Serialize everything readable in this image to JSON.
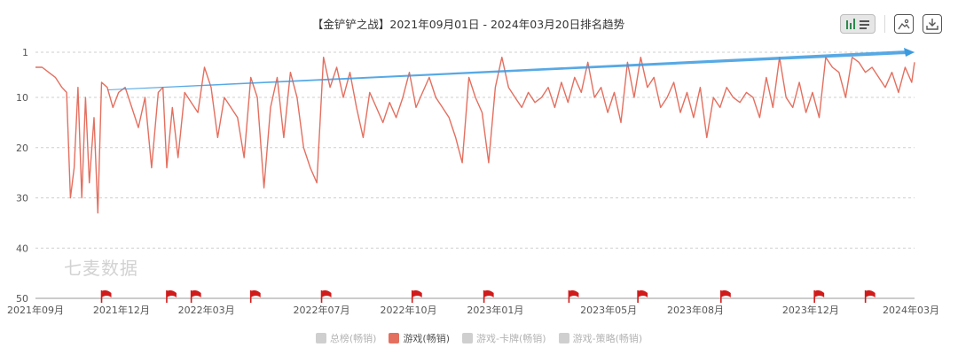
{
  "toolbar": {
    "bar_line_icon": "bar-line-toggle-icon",
    "image_icon": "save-image-icon",
    "download_icon": "download-icon"
  },
  "watermark": "七麦数据",
  "legend": [
    {
      "label": "总榜(畅销)",
      "active": false
    },
    {
      "label": "游戏(畅销)",
      "active": true
    },
    {
      "label": "游戏-卡牌(畅销)",
      "active": false
    },
    {
      "label": "游戏-策略(畅销)",
      "active": false
    }
  ],
  "colors": {
    "series": "#e46f5f",
    "trend": "#3a9ae0",
    "flag": "#d11b1b",
    "grid": "#cfcfcf"
  },
  "chart_data": {
    "type": "line",
    "title": "【金铲铲之战】2021年09月01日 - 2024年03月20日排名趋势",
    "xlabel": "",
    "ylabel": "",
    "y_inverted": true,
    "ylim": [
      1,
      50
    ],
    "y_ticks": [
      "1",
      "10",
      "20",
      "30",
      "40",
      "50"
    ],
    "y_tick_values": [
      1,
      10,
      20,
      30,
      40,
      50
    ],
    "x_range": [
      "2021-09-01",
      "2024-03-20"
    ],
    "x_ticks": [
      "2021年09月",
      "2021年12月",
      "2022年03月",
      "2022年07月",
      "2022年10月",
      "2023年01月",
      "2023年05月",
      "2023年08月",
      "2023年12月",
      "2024年03月"
    ],
    "x_tick_dates": [
      "2021-09-01",
      "2021-12-01",
      "2022-03-01",
      "2022-07-01",
      "2022-10-01",
      "2023-01-01",
      "2023-05-01",
      "2023-08-01",
      "2023-12-01",
      "2024-03-01"
    ],
    "grid": "horizontal-dashed",
    "legend_position": "bottom",
    "series": [
      {
        "name": "游戏(畅销)",
        "points": [
          [
            "2021-09-01",
            4
          ],
          [
            "2021-09-08",
            4
          ],
          [
            "2021-09-15",
            5
          ],
          [
            "2021-09-22",
            6
          ],
          [
            "2021-09-29",
            8
          ],
          [
            "2021-10-04",
            9
          ],
          [
            "2021-10-08",
            30
          ],
          [
            "2021-10-12",
            24
          ],
          [
            "2021-10-16",
            8
          ],
          [
            "2021-10-20",
            30
          ],
          [
            "2021-10-24",
            10
          ],
          [
            "2021-10-28",
            27
          ],
          [
            "2021-11-02",
            14
          ],
          [
            "2021-11-06",
            33
          ],
          [
            "2021-11-10",
            7
          ],
          [
            "2021-11-16",
            8
          ],
          [
            "2021-11-22",
            12
          ],
          [
            "2021-11-28",
            9
          ],
          [
            "2021-12-05",
            8
          ],
          [
            "2021-12-12",
            12
          ],
          [
            "2021-12-19",
            16
          ],
          [
            "2021-12-26",
            10
          ],
          [
            "2022-01-02",
            24
          ],
          [
            "2022-01-09",
            9
          ],
          [
            "2022-01-14",
            8
          ],
          [
            "2022-01-18",
            24
          ],
          [
            "2022-01-24",
            12
          ],
          [
            "2022-01-30",
            22
          ],
          [
            "2022-02-06",
            9
          ],
          [
            "2022-02-13",
            11
          ],
          [
            "2022-02-20",
            13
          ],
          [
            "2022-02-27",
            4
          ],
          [
            "2022-03-06",
            8
          ],
          [
            "2022-03-13",
            18
          ],
          [
            "2022-03-20",
            10
          ],
          [
            "2022-03-27",
            12
          ],
          [
            "2022-04-03",
            14
          ],
          [
            "2022-04-10",
            22
          ],
          [
            "2022-04-17",
            6
          ],
          [
            "2022-04-24",
            10
          ],
          [
            "2022-05-01",
            28
          ],
          [
            "2022-05-08",
            12
          ],
          [
            "2022-05-15",
            6
          ],
          [
            "2022-05-22",
            18
          ],
          [
            "2022-05-29",
            5
          ],
          [
            "2022-06-05",
            10
          ],
          [
            "2022-06-12",
            20
          ],
          [
            "2022-06-19",
            24
          ],
          [
            "2022-06-26",
            27
          ],
          [
            "2022-07-03",
            2
          ],
          [
            "2022-07-10",
            8
          ],
          [
            "2022-07-17",
            4
          ],
          [
            "2022-07-24",
            10
          ],
          [
            "2022-07-31",
            5
          ],
          [
            "2022-08-07",
            12
          ],
          [
            "2022-08-14",
            18
          ],
          [
            "2022-08-21",
            9
          ],
          [
            "2022-08-28",
            12
          ],
          [
            "2022-09-04",
            15
          ],
          [
            "2022-09-11",
            11
          ],
          [
            "2022-09-18",
            14
          ],
          [
            "2022-09-25",
            10
          ],
          [
            "2022-10-02",
            5
          ],
          [
            "2022-10-09",
            12
          ],
          [
            "2022-10-16",
            9
          ],
          [
            "2022-10-23",
            6
          ],
          [
            "2022-10-30",
            10
          ],
          [
            "2022-11-06",
            12
          ],
          [
            "2022-11-13",
            14
          ],
          [
            "2022-11-20",
            18
          ],
          [
            "2022-11-27",
            23
          ],
          [
            "2022-12-04",
            6
          ],
          [
            "2022-12-11",
            10
          ],
          [
            "2022-12-18",
            13
          ],
          [
            "2022-12-25",
            23
          ],
          [
            "2023-01-01",
            8
          ],
          [
            "2023-01-08",
            2
          ],
          [
            "2023-01-15",
            8
          ],
          [
            "2023-01-22",
            10
          ],
          [
            "2023-01-29",
            12
          ],
          [
            "2023-02-05",
            9
          ],
          [
            "2023-02-12",
            11
          ],
          [
            "2023-02-19",
            10
          ],
          [
            "2023-02-26",
            8
          ],
          [
            "2023-03-05",
            12
          ],
          [
            "2023-03-12",
            7
          ],
          [
            "2023-03-19",
            11
          ],
          [
            "2023-03-26",
            6
          ],
          [
            "2023-04-02",
            9
          ],
          [
            "2023-04-09",
            3
          ],
          [
            "2023-04-16",
            10
          ],
          [
            "2023-04-23",
            8
          ],
          [
            "2023-04-30",
            13
          ],
          [
            "2023-05-07",
            9
          ],
          [
            "2023-05-14",
            15
          ],
          [
            "2023-05-21",
            3
          ],
          [
            "2023-05-28",
            10
          ],
          [
            "2023-06-04",
            2
          ],
          [
            "2023-06-11",
            8
          ],
          [
            "2023-06-18",
            6
          ],
          [
            "2023-06-25",
            12
          ],
          [
            "2023-07-02",
            10
          ],
          [
            "2023-07-09",
            7
          ],
          [
            "2023-07-16",
            13
          ],
          [
            "2023-07-23",
            9
          ],
          [
            "2023-07-30",
            14
          ],
          [
            "2023-08-06",
            8
          ],
          [
            "2023-08-13",
            18
          ],
          [
            "2023-08-20",
            10
          ],
          [
            "2023-08-27",
            12
          ],
          [
            "2023-09-03",
            8
          ],
          [
            "2023-09-10",
            10
          ],
          [
            "2023-09-17",
            11
          ],
          [
            "2023-09-24",
            9
          ],
          [
            "2023-10-01",
            10
          ],
          [
            "2023-10-08",
            14
          ],
          [
            "2023-10-15",
            6
          ],
          [
            "2023-10-22",
            12
          ],
          [
            "2023-10-29",
            2
          ],
          [
            "2023-11-05",
            10
          ],
          [
            "2023-11-12",
            12
          ],
          [
            "2023-11-19",
            7
          ],
          [
            "2023-11-26",
            13
          ],
          [
            "2023-12-03",
            9
          ],
          [
            "2023-12-10",
            14
          ],
          [
            "2023-12-17",
            2
          ],
          [
            "2023-12-24",
            4
          ],
          [
            "2023-12-31",
            5
          ],
          [
            "2024-01-07",
            10
          ],
          [
            "2024-01-14",
            2
          ],
          [
            "2024-01-21",
            3
          ],
          [
            "2024-01-28",
            5
          ],
          [
            "2024-02-04",
            4
          ],
          [
            "2024-02-11",
            6
          ],
          [
            "2024-02-18",
            8
          ],
          [
            "2024-02-25",
            5
          ],
          [
            "2024-03-03",
            9
          ],
          [
            "2024-03-10",
            4
          ],
          [
            "2024-03-17",
            7
          ],
          [
            "2024-03-20",
            3
          ]
        ]
      }
    ],
    "trend_line": {
      "start": [
        "2021-11-16",
        8.5
      ],
      "end": [
        "2024-03-20",
        1
      ]
    },
    "event_flags": [
      "2021-11-10",
      "2022-01-18",
      "2022-02-13",
      "2022-04-17",
      "2022-07-01",
      "2022-10-05",
      "2022-12-20",
      "2023-03-20",
      "2023-06-01",
      "2023-08-28",
      "2023-12-05",
      "2024-01-28"
    ]
  }
}
